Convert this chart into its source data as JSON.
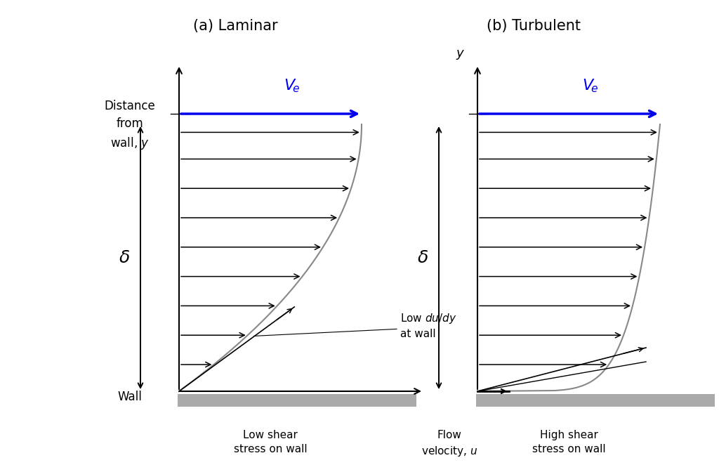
{
  "title_a": "(a) Laminar",
  "title_b": "(b) Turbulent",
  "bg_color": "#ffffff",
  "text_color": "#000000",
  "blue_color": "#0000ee",
  "arrow_color": "#000000",
  "profile_color": "#888888",
  "wall_color": "#aaaaaa",
  "title_fontsize": 15,
  "label_fontsize": 12,
  "annotation_fontsize": 11,
  "laminar_arrows_eta": [
    0.1,
    0.21,
    0.32,
    0.43,
    0.54,
    0.65,
    0.76,
    0.87,
    0.97
  ],
  "turbulent_arrows_eta": [
    0.1,
    0.21,
    0.32,
    0.43,
    0.54,
    0.65,
    0.76,
    0.87,
    0.97
  ]
}
